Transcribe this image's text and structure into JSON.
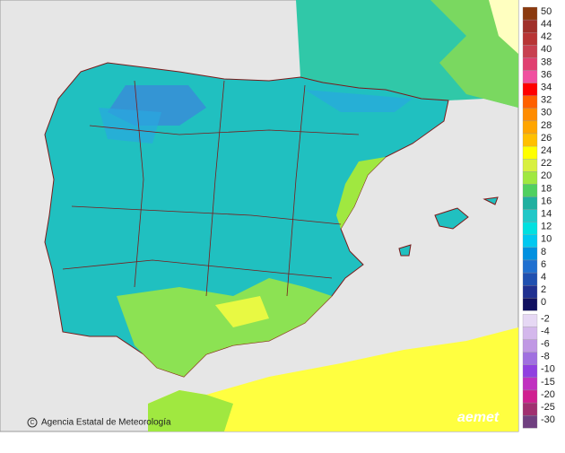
{
  "credit": "Agencia Estatal de Meteorología",
  "logo": "aemet",
  "legend": {
    "entries": [
      {
        "label": 50,
        "color": "#8b3a0f"
      },
      {
        "label": 44,
        "color": "#a0302a"
      },
      {
        "label": 42,
        "color": "#b83535"
      },
      {
        "label": 40,
        "color": "#c84050"
      },
      {
        "label": 38,
        "color": "#e04070"
      },
      {
        "label": 36,
        "color": "#f050a0"
      },
      {
        "label": 34,
        "color": "#ff0000"
      },
      {
        "label": 32,
        "color": "#ff6000"
      },
      {
        "label": 30,
        "color": "#ff8c00"
      },
      {
        "label": 28,
        "color": "#ffa500"
      },
      {
        "label": 26,
        "color": "#ffc000"
      },
      {
        "label": 24,
        "color": "#ffff00"
      },
      {
        "label": 22,
        "color": "#d8f040"
      },
      {
        "label": 20,
        "color": "#a0e840"
      },
      {
        "label": 18,
        "color": "#50d060"
      },
      {
        "label": 16,
        "color": "#20b0a0"
      },
      {
        "label": 14,
        "color": "#20c8c8"
      },
      {
        "label": 12,
        "color": "#00e0e0"
      },
      {
        "label": 10,
        "color": "#00c8f0"
      },
      {
        "label": 8,
        "color": "#0090e0"
      },
      {
        "label": 6,
        "color": "#2070d0"
      },
      {
        "label": 4,
        "color": "#2050b0"
      },
      {
        "label": 2,
        "color": "#203090"
      },
      {
        "label": 0,
        "color": "#101060"
      },
      {
        "label": -2,
        "color": "#e6d8f4"
      },
      {
        "label": -4,
        "color": "#d4b8ec"
      },
      {
        "label": -6,
        "color": "#c098e4"
      },
      {
        "label": -8,
        "color": "#a070e0"
      },
      {
        "label": -10,
        "color": "#9040e0"
      },
      {
        "label": -15,
        "color": "#c030c0"
      },
      {
        "label": -20,
        "color": "#d02090"
      },
      {
        "label": -25,
        "color": "#a03070"
      },
      {
        "label": -30,
        "color": "#704080"
      }
    ]
  }
}
